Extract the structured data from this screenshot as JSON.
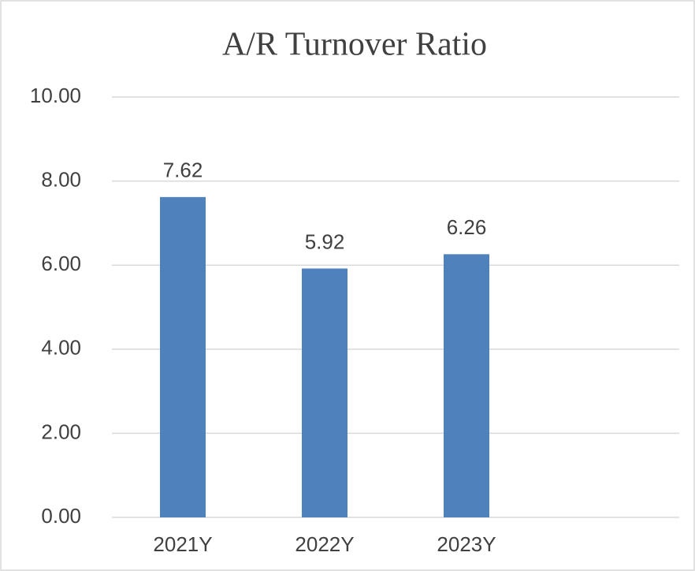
{
  "chart_data": {
    "type": "bar",
    "title": "A/R Turnover Ratio",
    "categories": [
      "2021Y",
      "2022Y",
      "2023Y",
      null
    ],
    "values": [
      7.62,
      5.92,
      6.26,
      null
    ],
    "color": "#4f81bd",
    "ylim": [
      0,
      10
    ],
    "yticks": [
      {
        "value": 0,
        "label": "0.00"
      },
      {
        "value": 2,
        "label": "2.00"
      },
      {
        "value": 4,
        "label": "4.00"
      },
      {
        "value": 6,
        "label": "6.00"
      },
      {
        "value": 8,
        "label": "8.00"
      },
      {
        "value": 10,
        "label": "10.00"
      }
    ],
    "grid": true
  }
}
